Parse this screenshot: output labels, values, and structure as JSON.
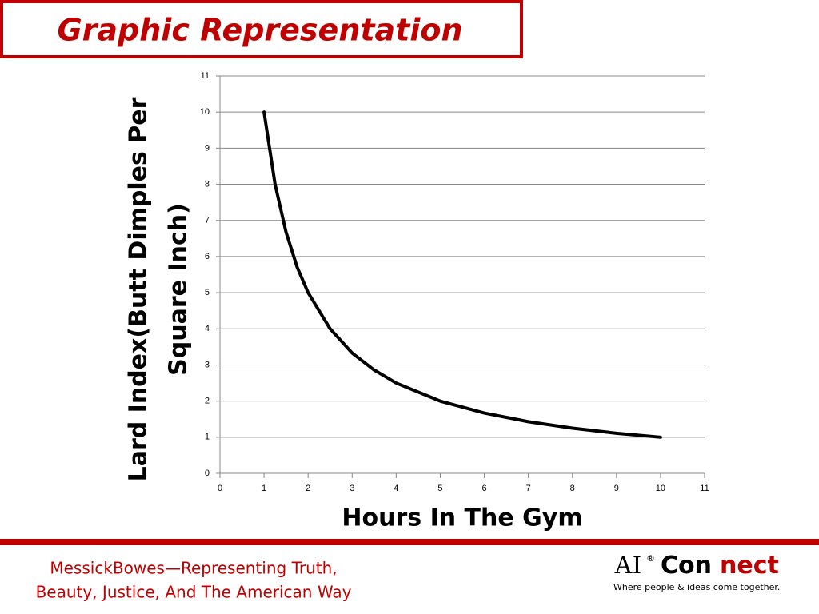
{
  "slide": {
    "title": "Graphic Representation",
    "footer_lines": [
      "MessickBowes—Representing Truth,",
      "Beauty, Justice, And  The American Way"
    ],
    "logo": {
      "ai": "AI",
      "registered": "®",
      "con": "Con",
      "nect": "nect",
      "tagline": "Where people & ideas come together."
    }
  },
  "chart_data": {
    "type": "line",
    "x_label": "Hours In The Gym",
    "y_label_lines": [
      "Lard Index(Butt Dimples Per",
      "Square Inch)"
    ],
    "x": [
      1,
      1.25,
      1.5,
      1.75,
      2,
      2.5,
      3,
      3.5,
      4,
      5,
      6,
      7,
      8,
      9,
      10
    ],
    "series": [
      {
        "color": "#000000",
        "values": [
          10,
          8,
          6.67,
          5.71,
          5,
          4,
          3.33,
          2.86,
          2.5,
          2,
          1.67,
          1.43,
          1.25,
          1.11,
          1
        ]
      }
    ],
    "xlim": [
      0,
      11
    ],
    "ylim": [
      0,
      11
    ],
    "xticks": [
      0,
      1,
      2,
      3,
      4,
      5,
      6,
      7,
      8,
      9,
      10,
      11
    ],
    "yticks": [
      0,
      1,
      2,
      3,
      4,
      5,
      6,
      7,
      8,
      9,
      10,
      11
    ],
    "grid": true
  }
}
